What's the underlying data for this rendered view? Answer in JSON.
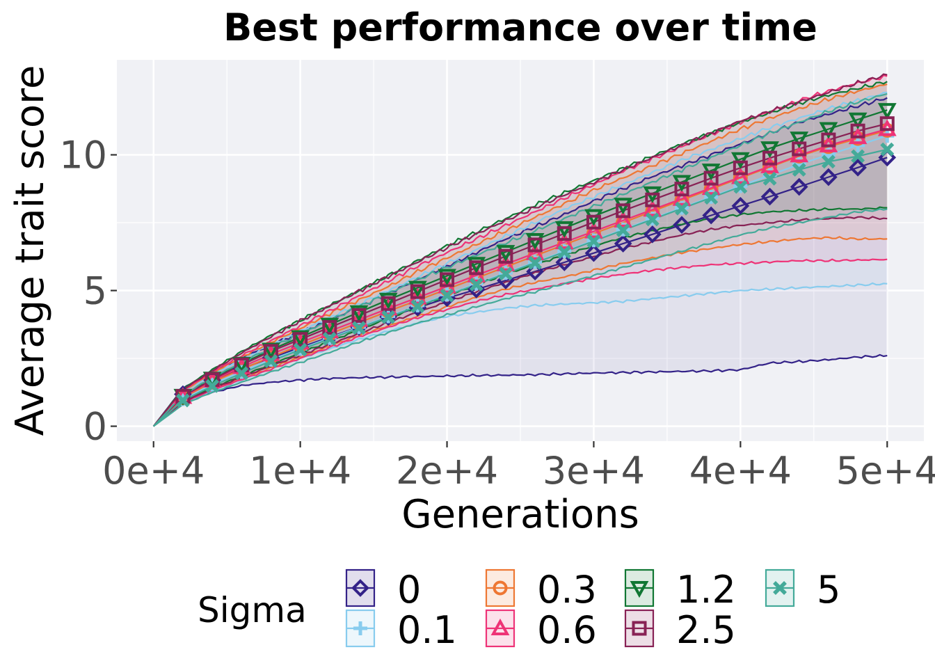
{
  "chart_data": {
    "type": "line",
    "title": "Best performance over time",
    "xlabel": "Generations",
    "ylabel": "Average trait score",
    "xlim": [
      -2500,
      52500
    ],
    "ylim": [
      -0.55,
      13.5
    ],
    "x_ticks": [
      0,
      10000,
      20000,
      30000,
      40000,
      50000
    ],
    "x_tick_labels": [
      "0e+4",
      "1e+4",
      "2e+4",
      "3e+4",
      "4e+4",
      "5e+4"
    ],
    "y_ticks": [
      0,
      5,
      10
    ],
    "y_tick_labels": [
      "0",
      "5",
      "10"
    ],
    "grid": true,
    "legend": {
      "title": "Sigma",
      "position": "bottom"
    },
    "x": [
      0,
      2000,
      4000,
      6000,
      8000,
      10000,
      12000,
      14000,
      16000,
      18000,
      20000,
      22000,
      24000,
      26000,
      28000,
      30000,
      32000,
      34000,
      36000,
      38000,
      40000,
      42000,
      44000,
      46000,
      48000,
      50000
    ],
    "series": [
      {
        "name": "0",
        "color": "#332288",
        "marker": "diamond",
        "mean": [
          0.0,
          1.18,
          1.7,
          2.12,
          2.52,
          2.9,
          3.28,
          3.66,
          4.03,
          4.37,
          4.72,
          5.04,
          5.37,
          5.7,
          6.04,
          6.38,
          6.73,
          7.07,
          7.42,
          7.77,
          8.12,
          8.46,
          8.82,
          9.18,
          9.53,
          9.9
        ],
        "lower": [
          0.0,
          0.9,
          1.25,
          1.5,
          1.62,
          1.7,
          1.76,
          1.79,
          1.81,
          1.83,
          1.85,
          1.87,
          1.88,
          1.9,
          1.93,
          1.96,
          1.98,
          2.0,
          2.02,
          2.04,
          2.08,
          2.33,
          2.38,
          2.45,
          2.55,
          2.6
        ],
        "upper": [
          0.0,
          1.4,
          2.0,
          2.5,
          3.0,
          3.45,
          3.9,
          4.4,
          4.9,
          5.4,
          5.9,
          6.4,
          6.9,
          7.35,
          7.8,
          8.3,
          8.75,
          9.2,
          9.6,
          10.0,
          10.4,
          10.8,
          11.2,
          11.5,
          11.8,
          12.1
        ]
      },
      {
        "name": "0.1",
        "color": "#88CCEE",
        "marker": "plus",
        "mean": [
          0.0,
          1.0,
          1.55,
          2.0,
          2.45,
          2.85,
          3.25,
          3.65,
          4.05,
          4.45,
          4.85,
          5.25,
          5.65,
          6.05,
          6.45,
          6.85,
          7.25,
          7.65,
          8.05,
          8.45,
          8.85,
          9.25,
          9.65,
          10.0,
          10.35,
          10.7
        ],
        "lower": [
          0.0,
          0.85,
          1.3,
          1.7,
          2.1,
          2.5,
          2.85,
          3.2,
          3.5,
          3.8,
          4.05,
          4.2,
          4.35,
          4.45,
          4.5,
          4.55,
          4.6,
          4.7,
          4.8,
          4.9,
          5.0,
          5.05,
          5.1,
          5.15,
          5.2,
          5.25
        ],
        "upper": [
          0.0,
          1.25,
          1.9,
          2.45,
          3.0,
          3.5,
          4.0,
          4.5,
          5.0,
          5.5,
          6.0,
          6.5,
          7.0,
          7.5,
          8.0,
          8.45,
          8.9,
          9.35,
          9.8,
          10.2,
          10.6,
          11.0,
          11.35,
          11.7,
          12.0,
          12.3
        ]
      },
      {
        "name": "0.3",
        "color": "#EE7733",
        "marker": "circle",
        "mean": [
          0.0,
          1.05,
          1.62,
          2.1,
          2.55,
          2.98,
          3.4,
          3.82,
          4.24,
          4.64,
          5.05,
          5.46,
          5.87,
          6.28,
          6.69,
          7.1,
          7.5,
          7.92,
          8.33,
          8.74,
          9.15,
          9.55,
          9.95,
          10.3,
          10.6,
          10.9
        ],
        "lower": [
          0.0,
          0.88,
          1.35,
          1.75,
          2.15,
          2.55,
          2.95,
          3.35,
          3.7,
          4.05,
          4.4,
          4.75,
          5.05,
          5.3,
          5.5,
          5.75,
          6.0,
          6.2,
          6.4,
          6.55,
          6.7,
          6.8,
          6.9,
          6.95,
          6.9,
          6.9
        ],
        "upper": [
          0.0,
          1.3,
          1.95,
          2.55,
          3.1,
          3.6,
          4.15,
          4.65,
          5.15,
          5.7,
          6.2,
          6.7,
          7.2,
          7.7,
          8.2,
          8.7,
          9.15,
          9.6,
          10.05,
          10.5,
          10.95,
          11.35,
          11.7,
          12.05,
          12.35,
          12.6
        ]
      },
      {
        "name": "0.6",
        "color": "#EE3377",
        "marker": "triangle",
        "mean": [
          0.0,
          1.08,
          1.68,
          2.18,
          2.65,
          3.08,
          3.5,
          3.92,
          4.34,
          4.74,
          5.15,
          5.56,
          5.97,
          6.38,
          6.78,
          7.18,
          7.58,
          7.98,
          8.38,
          8.78,
          9.18,
          9.58,
          9.98,
          10.35,
          10.65,
          10.95
        ],
        "lower": [
          0.0,
          0.87,
          1.33,
          1.72,
          2.1,
          2.5,
          2.9,
          3.3,
          3.65,
          4.0,
          4.3,
          4.6,
          4.85,
          5.05,
          5.25,
          5.45,
          5.6,
          5.75,
          5.85,
          5.95,
          6.0,
          6.05,
          6.1,
          6.1,
          6.12,
          6.15
        ],
        "upper": [
          0.0,
          1.32,
          2.0,
          2.6,
          3.15,
          3.7,
          4.25,
          4.8,
          5.35,
          5.9,
          6.4,
          6.9,
          7.4,
          7.9,
          8.4,
          8.9,
          9.4,
          9.85,
          10.3,
          10.75,
          11.2,
          11.6,
          12.0,
          12.35,
          12.65,
          12.9
        ]
      },
      {
        "name": "1.2",
        "color": "#117733",
        "marker": "triangle-down",
        "mean": [
          0.0,
          1.12,
          1.75,
          2.3,
          2.82,
          3.28,
          3.74,
          4.2,
          4.66,
          5.1,
          5.54,
          5.98,
          6.42,
          6.86,
          7.3,
          7.74,
          8.16,
          8.58,
          9.0,
          9.42,
          9.84,
          10.24,
          10.6,
          10.95,
          11.3,
          11.65
        ],
        "lower": [
          0.0,
          0.92,
          1.42,
          1.85,
          2.28,
          2.7,
          3.12,
          3.55,
          3.97,
          4.4,
          4.8,
          5.2,
          5.6,
          5.95,
          6.3,
          6.65,
          6.95,
          7.2,
          7.45,
          7.65,
          7.8,
          7.9,
          7.95,
          8.0,
          8.0,
          8.05
        ],
        "upper": [
          0.0,
          1.38,
          2.08,
          2.75,
          3.35,
          3.9,
          4.45,
          5.0,
          5.55,
          6.1,
          6.65,
          7.15,
          7.65,
          8.15,
          8.6,
          9.05,
          9.5,
          9.95,
          10.4,
          10.8,
          11.2,
          11.55,
          11.9,
          12.2,
          12.45,
          12.7
        ]
      },
      {
        "name": "2.5",
        "color": "#882255",
        "marker": "square",
        "mean": [
          0.0,
          1.1,
          1.72,
          2.26,
          2.76,
          3.2,
          3.64,
          4.08,
          4.52,
          4.96,
          5.4,
          5.84,
          6.26,
          6.68,
          7.1,
          7.52,
          7.94,
          8.34,
          8.74,
          9.14,
          9.52,
          9.88,
          10.22,
          10.55,
          10.88,
          11.15
        ],
        "lower": [
          0.0,
          0.9,
          1.38,
          1.8,
          2.22,
          2.62,
          3.02,
          3.42,
          3.82,
          4.2,
          4.58,
          4.95,
          5.3,
          5.65,
          5.95,
          6.25,
          6.55,
          6.8,
          7.05,
          7.25,
          7.4,
          7.5,
          7.6,
          7.65,
          7.7,
          7.65
        ],
        "upper": [
          0.0,
          1.35,
          2.05,
          2.7,
          3.3,
          3.88,
          4.43,
          4.98,
          5.52,
          6.05,
          6.58,
          7.08,
          7.58,
          8.05,
          8.52,
          8.98,
          9.45,
          9.9,
          10.35,
          10.8,
          11.25,
          11.6,
          11.95,
          12.3,
          12.65,
          12.95
        ]
      },
      {
        "name": "5",
        "color": "#44AA99",
        "marker": "cross",
        "mean": [
          0.0,
          0.95,
          1.48,
          1.95,
          2.4,
          2.82,
          3.22,
          3.62,
          4.02,
          4.42,
          4.82,
          5.22,
          5.62,
          6.02,
          6.42,
          6.82,
          7.22,
          7.62,
          8.02,
          8.42,
          8.82,
          9.12,
          9.45,
          9.75,
          9.95,
          10.2
        ],
        "lower": [
          0.0,
          0.8,
          1.25,
          1.62,
          2.0,
          2.35,
          2.72,
          3.1,
          3.45,
          3.8,
          4.1,
          4.4,
          4.7,
          4.95,
          5.25,
          5.55,
          5.85,
          6.15,
          6.45,
          6.75,
          7.05,
          7.3,
          7.5,
          7.7,
          7.9,
          8.0
        ],
        "upper": [
          0.0,
          1.15,
          1.8,
          2.35,
          2.9,
          3.4,
          3.9,
          4.4,
          4.9,
          5.4,
          5.85,
          6.3,
          6.75,
          7.2,
          7.65,
          8.1,
          8.55,
          9.0,
          9.45,
          9.9,
          10.35,
          10.8,
          11.2,
          11.6,
          11.95,
          12.25
        ]
      }
    ]
  }
}
